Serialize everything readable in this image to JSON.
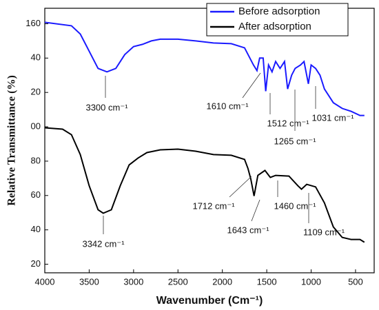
{
  "chart_data": {
    "type": "line",
    "x_label": "Wavenumber (Cm⁻¹)",
    "y_label": "Relative Transmittance (%)",
    "xlim": [
      4000,
      290
    ],
    "xticks": [
      4000,
      3500,
      3000,
      2500,
      2000,
      1500,
      1000,
      500
    ],
    "ylim": [
      15,
      169
    ],
    "yticks": [
      160,
      {
        "value": 140,
        "label": "40"
      },
      {
        "value": 120,
        "label": "20"
      },
      {
        "value": 100,
        "label": "00"
      },
      80,
      60,
      40,
      20
    ],
    "legend": "top-right",
    "series": [
      {
        "name": "Before adsorption",
        "color": "#1a1aff",
        "x": [
          4000,
          3700,
          3600,
          3500,
          3400,
          3300,
          3200,
          3100,
          3000,
          2900,
          2800,
          2700,
          2500,
          2300,
          2100,
          1900,
          1750,
          1650,
          1610,
          1580,
          1540,
          1512,
          1480,
          1440,
          1400,
          1350,
          1300,
          1265,
          1220,
          1180,
          1120,
          1080,
          1031,
          1000,
          950,
          900,
          850,
          800,
          750,
          650,
          550,
          450,
          400
        ],
        "values": [
          160.8,
          158.8,
          154,
          144,
          134,
          132,
          134,
          142,
          146.7,
          148,
          150,
          151,
          151,
          150,
          148.8,
          148.4,
          146,
          136,
          132.7,
          140,
          140,
          120.7,
          136,
          132,
          138,
          134,
          138,
          122,
          130,
          134,
          136,
          138,
          125,
          136,
          134,
          130,
          122,
          118,
          114,
          110.7,
          109,
          106.6,
          106.6
        ]
      },
      {
        "name": "After adsorption",
        "color": "#000000",
        "x": [
          4000,
          3800,
          3700,
          3600,
          3500,
          3400,
          3342,
          3250,
          3150,
          3050,
          2950,
          2850,
          2700,
          2500,
          2300,
          2100,
          1900,
          1750,
          1712,
          1680,
          1643,
          1600,
          1520,
          1460,
          1400,
          1250,
          1150,
          1109,
          1050,
          950,
          850,
          750,
          650,
          550,
          450,
          400
        ],
        "values": [
          99.4,
          98.6,
          95.4,
          83.8,
          65.7,
          51.7,
          49.7,
          51.7,
          65.7,
          77.8,
          81.8,
          85,
          86.6,
          87,
          85.8,
          83.8,
          83.4,
          81,
          75.8,
          69.7,
          59.7,
          71.7,
          74.6,
          70.5,
          71.7,
          71.3,
          65.7,
          63.7,
          66.5,
          65,
          55.7,
          41.7,
          35.6,
          34.4,
          34.4,
          32.8
        ]
      }
    ],
    "annotations": [
      "3300 cm⁻¹",
      "1610 cm⁻¹",
      "1512 cm⁻¹",
      "1265 cm⁻¹",
      "1031 cm⁻¹",
      "3342 cm⁻¹",
      "1712 cm⁻¹",
      "1643 cm⁻¹",
      "1460 cm⁻¹",
      "1109 cm⁻¹"
    ]
  }
}
